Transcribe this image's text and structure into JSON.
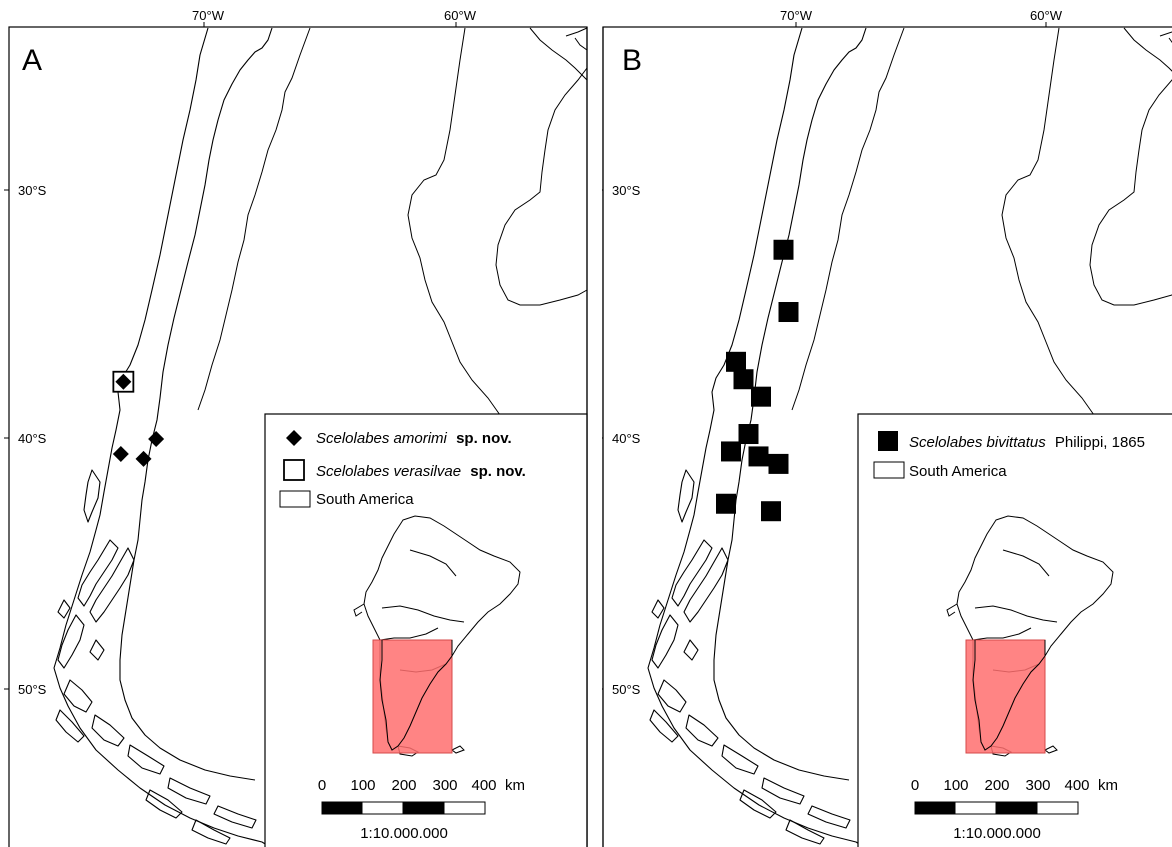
{
  "top_axis": {
    "lon_labels": [
      "70°W",
      "60°W"
    ]
  },
  "left_axis": {
    "lat_labels": [
      "30°S",
      "40°S",
      "50°S"
    ]
  },
  "panels": [
    {
      "letter": "A",
      "legend": {
        "items": [
          {
            "symbol": "diamond",
            "name": "Scelolabes amorimi",
            "suffix": "sp. nov."
          },
          {
            "symbol": "open-square",
            "name": "Scelolabes verasilvae",
            "suffix": "sp. nov."
          },
          {
            "symbol": "land-box",
            "name": "South America",
            "suffix": ""
          }
        ]
      },
      "records": {
        "diamonds": [
          {
            "lon": -73.2,
            "lat": -37.7
          },
          {
            "lon": -71.9,
            "lat": -40.0
          },
          {
            "lon": -73.3,
            "lat": -40.6
          },
          {
            "lon": -72.4,
            "lat": -40.8
          }
        ],
        "open_squares": [
          {
            "lon": -73.2,
            "lat": -37.7
          }
        ]
      }
    },
    {
      "letter": "B",
      "legend": {
        "items": [
          {
            "symbol": "filled-square",
            "name": "Scelolabes bivittatus",
            "suffix": "Philippi, 1865"
          },
          {
            "symbol": "land-box",
            "name": "South America",
            "suffix": ""
          }
        ]
      },
      "records": {
        "filled_squares": [
          {
            "lon": -70.5,
            "lat": -32.4
          },
          {
            "lon": -70.3,
            "lat": -34.9
          },
          {
            "lon": -72.4,
            "lat": -36.9
          },
          {
            "lon": -72.1,
            "lat": -37.6
          },
          {
            "lon": -71.4,
            "lat": -38.3
          },
          {
            "lon": -71.9,
            "lat": -39.8
          },
          {
            "lon": -72.6,
            "lat": -40.5
          },
          {
            "lon": -71.5,
            "lat": -40.7
          },
          {
            "lon": -70.7,
            "lat": -41.0
          },
          {
            "lon": -72.8,
            "lat": -42.6
          },
          {
            "lon": -71.0,
            "lat": -42.9
          }
        ]
      }
    }
  ],
  "scale_bar": {
    "ticks": [
      "0",
      "100",
      "200",
      "300",
      "400"
    ],
    "unit": "km",
    "ratio": "1:10.000.000"
  },
  "colors": {
    "study_area_fill": "#ff6e6e",
    "study_area_stroke": "#d64a4a",
    "ink": "#000000"
  }
}
